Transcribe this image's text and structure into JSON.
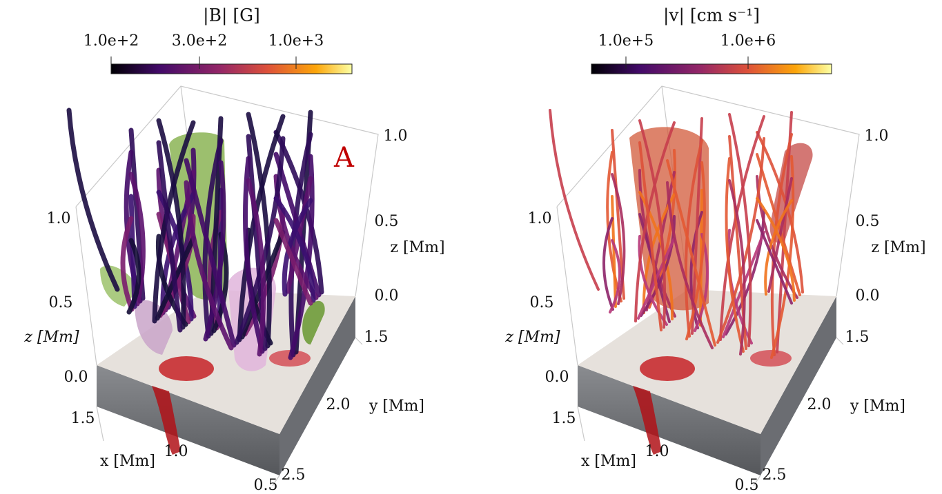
{
  "panels": [
    {
      "colorbar": {
        "label": "|B|  [G]",
        "ticks": [
          "1.0e+2",
          "3.0e+2",
          "1.0e+3"
        ]
      },
      "annotation": "A",
      "axes": {
        "z_left_ticks": [
          "1.0",
          "0.5",
          "0.0"
        ],
        "z_left_label": "z  [Mm]",
        "z_right_ticks": [
          "1.0",
          "0.5",
          "0.0"
        ],
        "z_right_label": "z  [Mm]",
        "y_ticks": [
          "1.5",
          "2.0",
          "2.5"
        ],
        "y_label": "y  [Mm]",
        "x_ticks": [
          "1.5",
          "1.0",
          "0.5"
        ],
        "x_label": "x  [Mm]"
      }
    },
    {
      "colorbar": {
        "label": "|v|  [cm s⁻¹]",
        "ticks": [
          "1.0e+5",
          "1.0e+6"
        ]
      },
      "axes": {
        "z_left_ticks": [
          "1.0",
          "0.5",
          "0.0"
        ],
        "z_left_label": "z  [Mm]",
        "z_right_ticks": [
          "1.0",
          "0.5",
          "0.0"
        ],
        "z_right_label": "z  [Mm]",
        "y_ticks": [
          "1.5",
          "2.0",
          "2.5"
        ],
        "y_label": "y  [Mm]",
        "x_ticks": [
          "1.5",
          "1.0",
          "0.5"
        ],
        "x_label": "x  [Mm]"
      }
    }
  ]
}
